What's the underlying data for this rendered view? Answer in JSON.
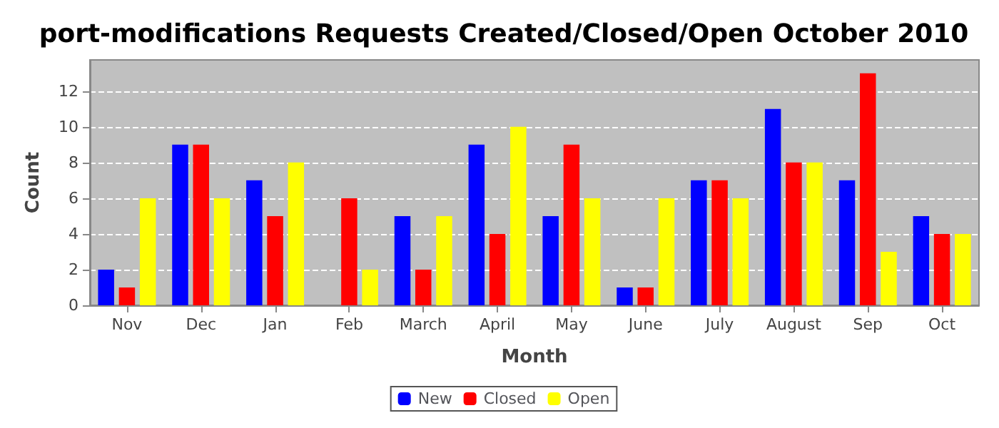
{
  "chart_data": {
    "type": "bar",
    "title": "port-modifications Requests Created/Closed/Open October 2010",
    "xlabel": "Month",
    "ylabel": "Count",
    "categories": [
      "Nov",
      "Dec",
      "Jan",
      "Feb",
      "March",
      "April",
      "May",
      "June",
      "July",
      "August",
      "Sep",
      "Oct"
    ],
    "series": [
      {
        "name": "New",
        "color": "#0000ff",
        "values": [
          2,
          9,
          7,
          0,
          5,
          9,
          5,
          1,
          7,
          11,
          7,
          5
        ]
      },
      {
        "name": "Closed",
        "color": "#ff0000",
        "values": [
          1,
          9,
          5,
          6,
          2,
          4,
          9,
          1,
          7,
          8,
          13,
          4
        ]
      },
      {
        "name": "Open",
        "color": "#ffff00",
        "values": [
          6,
          6,
          8,
          2,
          5,
          10,
          6,
          6,
          6,
          8,
          3,
          4
        ]
      }
    ],
    "ylim": [
      0,
      13.75
    ],
    "yticks": [
      0,
      2,
      4,
      6,
      8,
      10,
      12
    ],
    "grid": "y",
    "legend": "bottom"
  }
}
